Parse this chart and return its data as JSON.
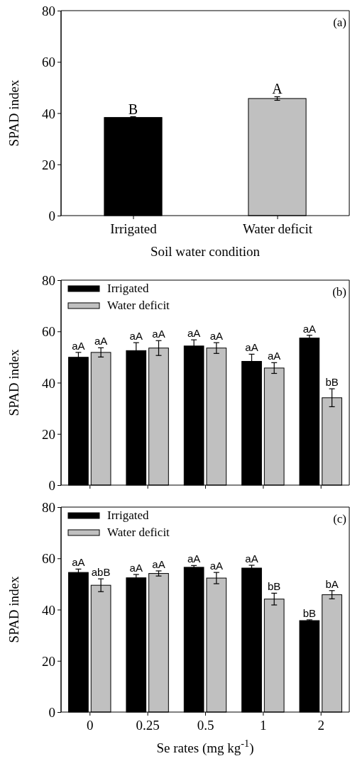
{
  "chart_data": [
    {
      "type": "bar",
      "categories": [
        "Irrigated",
        "Water deficit"
      ],
      "values": [
        38.3,
        45.7
      ],
      "colors": [
        "#000000",
        "#c0c0c0"
      ],
      "errors": [
        0.3,
        0.7
      ],
      "value_labels": [
        "B",
        "A"
      ],
      "xlabel": "Soil water condition",
      "ylabel": "SPAD index",
      "ylim": [
        0,
        80
      ],
      "yticks": [
        0,
        20,
        40,
        60,
        80
      ],
      "annotations": [
        "(a)"
      ]
    },
    {
      "type": "bar",
      "categories": [
        null,
        null,
        null,
        null,
        null
      ],
      "series": [
        {
          "name": "Irrigated",
          "color": "#000000",
          "values": [
            49.9,
            52.5,
            54.3,
            48.3,
            57.4
          ],
          "errors": [
            1.9,
            3.1,
            2.4,
            2.8,
            1.1
          ],
          "value_labels": [
            "aA",
            "aA",
            "aA",
            "aA",
            "aA"
          ]
        },
        {
          "name": "Water deficit",
          "color": "#c0c0c0",
          "values": [
            51.8,
            53.5,
            53.5,
            45.7,
            34.1
          ],
          "errors": [
            1.8,
            2.9,
            2.1,
            2.1,
            3.5
          ],
          "value_labels": [
            "aA",
            "aA",
            "aA",
            "aA",
            "bB"
          ]
        }
      ],
      "ylabel": "SPAD index",
      "ylim": [
        0,
        80
      ],
      "yticks": [
        0,
        20,
        40,
        60,
        80
      ],
      "legend": "top left",
      "tick_labels": "y",
      "annotations": [
        "(b)"
      ]
    },
    {
      "type": "bar",
      "categories": [
        "0",
        "0.25",
        "0.5",
        "1",
        "2"
      ],
      "series": [
        {
          "name": "Irrigated",
          "color": "#000000",
          "values": [
            54.5,
            52.4,
            56.5,
            56.2,
            35.7
          ],
          "errors": [
            1.3,
            1.3,
            0.7,
            1.1,
            0.3
          ],
          "value_labels": [
            "aA",
            "aA",
            "aA",
            "aA",
            "bB"
          ]
        },
        {
          "name": "Water deficit",
          "color": "#c0c0c0",
          "values": [
            49.5,
            54.1,
            52.3,
            44.1,
            45.8
          ],
          "errors": [
            2.5,
            1.0,
            2.2,
            2.3,
            1.6
          ],
          "value_labels": [
            "abB",
            "aA",
            "aA",
            "bB",
            "bA"
          ]
        }
      ],
      "xlabel": "Se rates (mg kg$^{-1}$)",
      "ylabel": "SPAD index",
      "ylim": [
        0,
        80
      ],
      "yticks": [
        0,
        20,
        40,
        60,
        80
      ],
      "legend": "top left",
      "annotations": [
        "(c)"
      ]
    }
  ]
}
